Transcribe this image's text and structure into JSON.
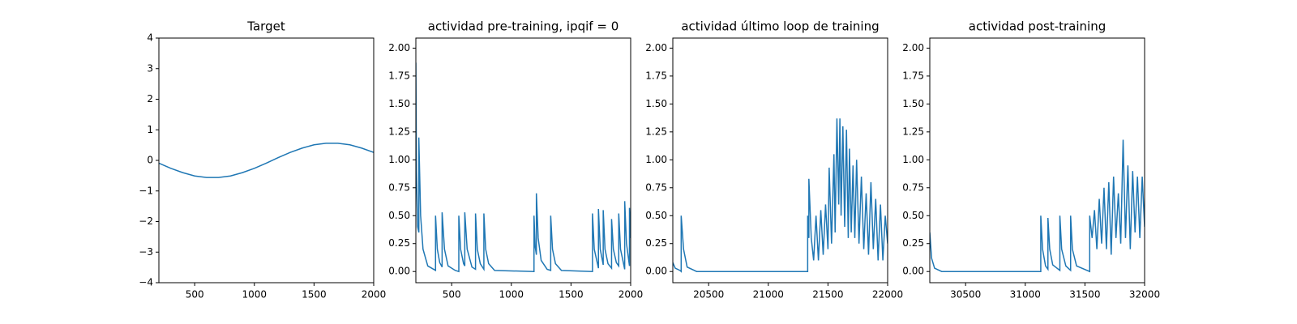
{
  "chart_data": [
    {
      "type": "line",
      "title": "Target",
      "color": "#1f77b4",
      "x": [
        200,
        300,
        400,
        500,
        600,
        700,
        800,
        900,
        1000,
        1100,
        1200,
        1300,
        1400,
        1500,
        1600,
        1700,
        1800,
        1900,
        2000
      ],
      "values": [
        -0.09,
        -0.26,
        -0.4,
        -0.51,
        -0.56,
        -0.56,
        -0.51,
        -0.4,
        -0.26,
        -0.09,
        0.09,
        0.26,
        0.4,
        0.51,
        0.56,
        0.56,
        0.51,
        0.4,
        0.26
      ],
      "xlim": [
        200,
        2000
      ],
      "xticks": [
        500,
        1000,
        1500,
        2000
      ],
      "ylim": [
        -4,
        4
      ],
      "yticks": [
        {
          "value": -4,
          "label": "−4"
        },
        {
          "value": -3,
          "label": "−3"
        },
        {
          "value": -2,
          "label": "−2"
        },
        {
          "value": -1,
          "label": "−1"
        },
        0,
        1,
        2,
        3,
        4
      ]
    },
    {
      "type": "line",
      "title": "actividad pre-training, ipqif = 0",
      "color": "#1f77b4",
      "x": [
        200,
        205,
        215,
        225,
        225,
        240,
        260,
        300,
        365,
        365,
        380,
        400,
        420,
        420,
        440,
        470,
        530,
        560,
        560,
        575,
        600,
        610,
        610,
        630,
        670,
        700,
        700,
        715,
        740,
        770,
        770,
        785,
        810,
        860,
        1190,
        1190,
        1200,
        1210,
        1210,
        1225,
        1250,
        1300,
        1330,
        1330,
        1345,
        1370,
        1420,
        1680,
        1680,
        1695,
        1730,
        1730,
        1745,
        1770,
        1770,
        1785,
        1810,
        1840,
        1840,
        1855,
        1880,
        1900,
        1900,
        1915,
        1950,
        1950,
        1965,
        1990,
        1990,
        2000
      ],
      "values": [
        1.87,
        0.9,
        0.4,
        0.35,
        1.2,
        0.5,
        0.2,
        0.05,
        0.01,
        0.5,
        0.2,
        0.08,
        0.04,
        0.53,
        0.2,
        0.05,
        0.01,
        0.0,
        0.5,
        0.2,
        0.07,
        0.05,
        0.53,
        0.2,
        0.04,
        0.02,
        0.52,
        0.2,
        0.07,
        0.02,
        0.52,
        0.2,
        0.07,
        0.01,
        0.0,
        0.5,
        0.22,
        0.15,
        0.7,
        0.3,
        0.1,
        0.02,
        0.01,
        0.5,
        0.2,
        0.07,
        0.01,
        0.0,
        0.52,
        0.2,
        0.03,
        0.56,
        0.2,
        0.06,
        0.55,
        0.2,
        0.07,
        0.03,
        0.47,
        0.2,
        0.08,
        0.05,
        0.52,
        0.2,
        0.02,
        0.63,
        0.25,
        0.05,
        0.57,
        0.3
      ],
      "xlim": [
        200,
        2000
      ],
      "xticks": [
        500,
        1000,
        1500,
        2000
      ],
      "ylim": [
        -0.1,
        2.09
      ],
      "yticks": [
        {
          "value": 0,
          "label": "0.00"
        },
        {
          "value": 0.25,
          "label": "0.25"
        },
        {
          "value": 0.5,
          "label": "0.50"
        },
        {
          "value": 0.75,
          "label": "0.75"
        },
        {
          "value": 1,
          "label": "1.00"
        },
        {
          "value": 1.25,
          "label": "1.25"
        },
        {
          "value": 1.5,
          "label": "1.50"
        },
        {
          "value": 1.75,
          "label": "1.75"
        },
        {
          "value": 2,
          "label": "2.00"
        }
      ]
    },
    {
      "type": "line",
      "title": "actividad último loop de training",
      "color": "#1f77b4",
      "x": [
        20200,
        20220,
        20260,
        20270,
        20270,
        20290,
        20320,
        20400,
        21330,
        21330,
        21340,
        21340,
        21360,
        21380,
        21400,
        21420,
        21440,
        21460,
        21480,
        21500,
        21510,
        21530,
        21550,
        21560,
        21575,
        21590,
        21600,
        21610,
        21625,
        21640,
        21655,
        21670,
        21680,
        21695,
        21710,
        21725,
        21740,
        21760,
        21780,
        21800,
        21820,
        21840,
        21860,
        21880,
        21900,
        21920,
        21940,
        21960,
        21980,
        22000
      ],
      "values": [
        0.08,
        0.03,
        0.01,
        0.0,
        0.5,
        0.2,
        0.04,
        0.0,
        0.0,
        0.5,
        0.3,
        0.83,
        0.3,
        0.1,
        0.5,
        0.1,
        0.55,
        0.15,
        0.6,
        0.2,
        0.93,
        0.25,
        1.05,
        0.35,
        1.37,
        0.6,
        1.37,
        0.5,
        1.3,
        0.4,
        1.27,
        0.3,
        1.1,
        0.35,
        0.95,
        0.3,
        1.0,
        0.25,
        0.85,
        0.2,
        0.7,
        0.15,
        0.8,
        0.2,
        0.65,
        0.1,
        0.6,
        0.1,
        0.5,
        0.25
      ],
      "xlim": [
        20200,
        22000
      ],
      "xticks": [
        20500,
        21000,
        21500,
        22000
      ],
      "ylim": [
        -0.1,
        2.09
      ],
      "yticks": [
        {
          "value": 0,
          "label": "0.00"
        },
        {
          "value": 0.25,
          "label": "0.25"
        },
        {
          "value": 0.5,
          "label": "0.50"
        },
        {
          "value": 0.75,
          "label": "0.75"
        },
        {
          "value": 1,
          "label": "1.00"
        },
        {
          "value": 1.25,
          "label": "1.25"
        },
        {
          "value": 1.5,
          "label": "1.50"
        },
        {
          "value": 1.75,
          "label": "1.75"
        },
        {
          "value": 2,
          "label": "2.00"
        }
      ]
    },
    {
      "type": "line",
      "title": "actividad post-training",
      "color": "#1f77b4",
      "x": [
        30200,
        30215,
        30240,
        30300,
        31130,
        31130,
        31145,
        31170,
        31190,
        31190,
        31205,
        31230,
        31290,
        31290,
        31305,
        31340,
        31380,
        31380,
        31395,
        31430,
        31540,
        31540,
        31560,
        31580,
        31600,
        31620,
        31640,
        31660,
        31680,
        31700,
        31720,
        31740,
        31760,
        31780,
        31800,
        31820,
        31840,
        31860,
        31880,
        31900,
        31920,
        31940,
        31960,
        31980,
        32000
      ],
      "values": [
        0.35,
        0.12,
        0.03,
        0.0,
        0.0,
        0.5,
        0.2,
        0.05,
        0.02,
        0.48,
        0.2,
        0.06,
        0.01,
        0.5,
        0.2,
        0.05,
        0.01,
        0.5,
        0.2,
        0.05,
        0.0,
        0.5,
        0.3,
        0.55,
        0.2,
        0.65,
        0.25,
        0.75,
        0.2,
        0.8,
        0.15,
        0.85,
        0.3,
        0.7,
        0.25,
        1.18,
        0.3,
        0.95,
        0.2,
        0.9,
        0.35,
        0.85,
        0.3,
        0.85,
        0.4
      ],
      "xlim": [
        30200,
        32000
      ],
      "xticks": [
        30500,
        31000,
        31500,
        32000
      ],
      "ylim": [
        -0.1,
        2.09
      ],
      "yticks": [
        {
          "value": 0,
          "label": "0.00"
        },
        {
          "value": 0.25,
          "label": "0.25"
        },
        {
          "value": 0.5,
          "label": "0.50"
        },
        {
          "value": 0.75,
          "label": "0.75"
        },
        {
          "value": 1,
          "label": "1.00"
        },
        {
          "value": 1.25,
          "label": "1.25"
        },
        {
          "value": 1.5,
          "label": "1.50"
        },
        {
          "value": 1.75,
          "label": "1.75"
        },
        {
          "value": 2,
          "label": "2.00"
        }
      ]
    }
  ]
}
